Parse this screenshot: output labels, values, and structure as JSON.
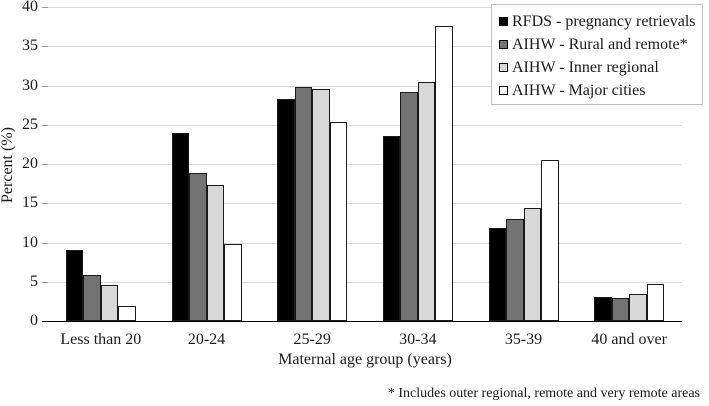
{
  "chart_data": {
    "type": "bar",
    "title": "",
    "categories": [
      "Less than 20",
      "20-24",
      "25-29",
      "30-34",
      "35-39",
      "40 and over"
    ],
    "series": [
      {
        "name": "RFDS - pregnancy retrievals",
        "fill": "#000000",
        "values": [
          9.0,
          24.0,
          28.3,
          23.6,
          11.9,
          3.0
        ]
      },
      {
        "name": "AIHW - Rural and remote*",
        "fill": "#737373",
        "values": [
          5.9,
          18.9,
          29.8,
          29.2,
          13.0,
          2.9
        ]
      },
      {
        "name": "AIHW - Inner regional",
        "fill": "#d8d8d8",
        "values": [
          4.6,
          17.3,
          29.6,
          30.5,
          14.4,
          3.4
        ]
      },
      {
        "name": "AIHW - Major cities",
        "fill": "#ffffff",
        "values": [
          1.9,
          9.8,
          25.3,
          37.6,
          20.5,
          4.7
        ]
      }
    ],
    "xlabel": "Maternal age group (years)",
    "ylabel": "Percent (%)",
    "ylim": [
      0,
      40
    ],
    "ytick_step": 5,
    "yticks": [
      0,
      5,
      10,
      15,
      20,
      25,
      30,
      35,
      40
    ],
    "grid": true,
    "legend_position": "top-right"
  },
  "footnote": "* Includes outer regional, remote and very remote areas",
  "style": {
    "bar_border": "#1a1a1a",
    "gridline_color": "#d9d9d9",
    "axis_color": "#000000",
    "legend_border": "#bfbfbf",
    "text_color": "#1a1a1a",
    "background": "#ffffff"
  }
}
